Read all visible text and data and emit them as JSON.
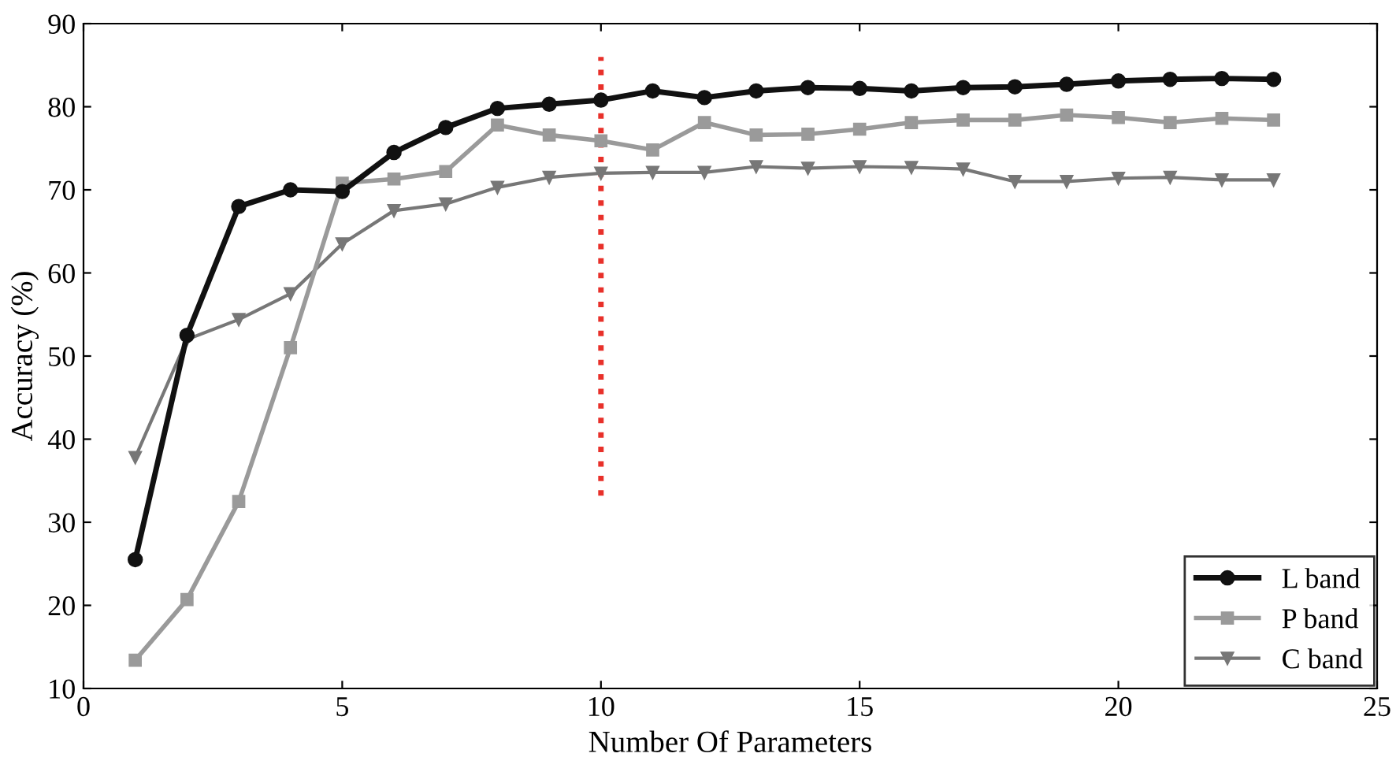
{
  "chart_data": {
    "type": "line",
    "xlabel": "Number Of Parameters",
    "ylabel": "Accuracy (%)",
    "x": [
      1,
      2,
      3,
      4,
      5,
      6,
      7,
      8,
      9,
      10,
      11,
      12,
      13,
      14,
      15,
      16,
      17,
      18,
      19,
      20,
      21,
      22,
      23
    ],
    "series": [
      {
        "name": "L band",
        "color": "#111111",
        "marker": "circle",
        "values": [
          25.5,
          52.5,
          68,
          70,
          69.8,
          74.5,
          77.5,
          79.8,
          80.3,
          80.8,
          81.9,
          81.1,
          81.9,
          82.3,
          82.2,
          81.9,
          82.3,
          82.4,
          82.7,
          83.1,
          83.3,
          83.4,
          83.3
        ]
      },
      {
        "name": "P band",
        "color": "#9a9a9a",
        "marker": "square",
        "values": [
          13.4,
          20.7,
          32.5,
          51,
          70.8,
          71.3,
          72.2,
          77.8,
          76.6,
          75.9,
          74.8,
          78.1,
          76.6,
          76.7,
          77.3,
          78.1,
          78.4,
          78.4,
          79,
          78.7,
          78.1,
          78.6,
          78.4
        ]
      },
      {
        "name": "C band",
        "color": "#777777",
        "marker": "triangle",
        "values": [
          37.8,
          52,
          54.4,
          57.5,
          63.5,
          67.5,
          68.3,
          70.3,
          71.5,
          72,
          72.1,
          72.1,
          72.8,
          72.6,
          72.8,
          72.7,
          72.5,
          71,
          71,
          71.4,
          71.5,
          71.2,
          71.2
        ]
      }
    ],
    "ref_lines": [
      {
        "axis": "x",
        "value": 10,
        "color": "#e8302a",
        "line_style": "dotted"
      }
    ],
    "xlim": [
      0,
      25
    ],
    "xticks": [
      0,
      5,
      10,
      15,
      20,
      25
    ],
    "ylim": [
      10,
      90
    ],
    "yticks": [
      10,
      20,
      30,
      40,
      50,
      60,
      70,
      80,
      90
    ],
    "grid": false,
    "legend": "bottom right"
  }
}
